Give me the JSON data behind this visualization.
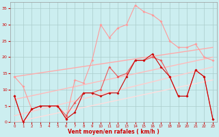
{
  "background_color": "#cceef0",
  "grid_color": "#aacccc",
  "xlabel": "Vent moyen/en rafales ( km/h )",
  "tick_color": "#cc0000",
  "xlim": [
    -0.5,
    23.5
  ],
  "ylim": [
    0,
    37
  ],
  "yticks": [
    0,
    5,
    10,
    15,
    20,
    25,
    30,
    35
  ],
  "xticks": [
    0,
    1,
    2,
    3,
    4,
    5,
    6,
    7,
    8,
    9,
    10,
    11,
    12,
    13,
    14,
    15,
    16,
    17,
    18,
    19,
    20,
    21,
    22,
    23
  ],
  "series": [
    {
      "x": [
        0,
        23
      ],
      "y": [
        14,
        23
      ],
      "color": "#ffaaaa",
      "lw": 1.0,
      "marker": null,
      "ms": 0,
      "zorder": 2
    },
    {
      "x": [
        0,
        23
      ],
      "y": [
        7,
        20
      ],
      "color": "#ffbbbb",
      "lw": 1.0,
      "marker": null,
      "ms": 0,
      "zorder": 2
    },
    {
      "x": [
        0,
        23
      ],
      "y": [
        2,
        17
      ],
      "color": "#ffcccc",
      "lw": 1.0,
      "marker": null,
      "ms": 0,
      "zorder": 2
    },
    {
      "x": [
        0,
        23
      ],
      "y": [
        0,
        13
      ],
      "color": "#ffdddd",
      "lw": 1.0,
      "marker": null,
      "ms": 0,
      "zorder": 2
    },
    {
      "x": [
        0,
        1,
        2,
        3,
        4,
        5,
        6,
        7,
        8,
        9,
        10,
        11,
        12,
        13,
        14,
        15,
        16,
        17,
        18,
        19,
        20,
        21,
        22,
        23
      ],
      "y": [
        14,
        11,
        4,
        5,
        5,
        5,
        1,
        13,
        12,
        19,
        30,
        26,
        29,
        30,
        36,
        34,
        33,
        31,
        25,
        23,
        23,
        24,
        20,
        19
      ],
      "color": "#ff9999",
      "lw": 0.8,
      "marker": "D",
      "ms": 2.0,
      "zorder": 3
    },
    {
      "x": [
        0,
        1,
        2,
        3,
        4,
        5,
        6,
        7,
        8,
        9,
        10,
        11,
        12,
        13,
        14,
        15,
        16,
        17,
        18,
        19,
        20,
        21,
        22,
        23
      ],
      "y": [
        8,
        0,
        4,
        5,
        5,
        5,
        2,
        6,
        9,
        9,
        10,
        17,
        14,
        15,
        19,
        19,
        20,
        19,
        14,
        8,
        8,
        16,
        14,
        1
      ],
      "color": "#ee5555",
      "lw": 0.8,
      "marker": "D",
      "ms": 2.0,
      "zorder": 4
    },
    {
      "x": [
        0,
        1,
        2,
        3,
        4,
        5,
        6,
        7,
        8,
        9,
        10,
        11,
        12,
        13,
        14,
        15,
        16,
        17,
        18,
        19,
        20,
        21,
        22,
        23
      ],
      "y": [
        8,
        0,
        4,
        5,
        5,
        5,
        1,
        3,
        9,
        9,
        8,
        9,
        9,
        14,
        19,
        19,
        21,
        17,
        14,
        8,
        8,
        16,
        14,
        1
      ],
      "color": "#cc0000",
      "lw": 0.8,
      "marker": "D",
      "ms": 2.0,
      "zorder": 5
    }
  ]
}
